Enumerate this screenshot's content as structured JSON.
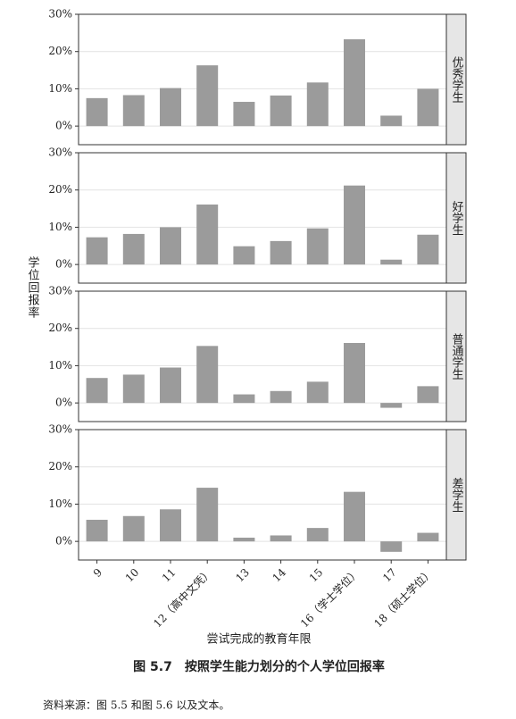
{
  "chart_data": {
    "type": "bar",
    "categories": [
      "9",
      "10",
      "11",
      "12（高中文凭）",
      "13",
      "14",
      "15",
      "16（学士学位）",
      "17",
      "18（硕士学位）"
    ],
    "facets": [
      {
        "label": "优秀学生",
        "values": [
          7.5,
          8.3,
          10.2,
          16.3,
          6.5,
          8.2,
          11.7,
          23.3,
          2.8,
          10
        ]
      },
      {
        "label": "好学生",
        "values": [
          7.3,
          8.2,
          10,
          16.1,
          4.9,
          6.3,
          9.7,
          21.2,
          1.3,
          8
        ]
      },
      {
        "label": "普通学生",
        "values": [
          6.7,
          7.6,
          9.5,
          15.3,
          2.3,
          3.2,
          5.7,
          16.1,
          -1.3,
          4.5
        ]
      },
      {
        "label": "差学生",
        "values": [
          5.8,
          6.8,
          8.6,
          14.4,
          1,
          1.6,
          3.6,
          13.3,
          -2.8,
          2.3
        ]
      }
    ],
    "color": "#9b9b9b",
    "ylim": [
      -5,
      30
    ],
    "yticks": [
      {
        "value": 0,
        "label": "0%"
      },
      {
        "value": 10,
        "label": "10%"
      },
      {
        "value": 20,
        "label": "20%"
      },
      {
        "value": 30,
        "label": "30%"
      }
    ],
    "grid": true,
    "x_label": "尝试完成的教育年限",
    "y_label": "学位回报率"
  },
  "caption": "图 5.7　按照学生能力划分的个人学位回报率",
  "source": "资料来源：图 5.5 和图 5.6 以及文本。"
}
